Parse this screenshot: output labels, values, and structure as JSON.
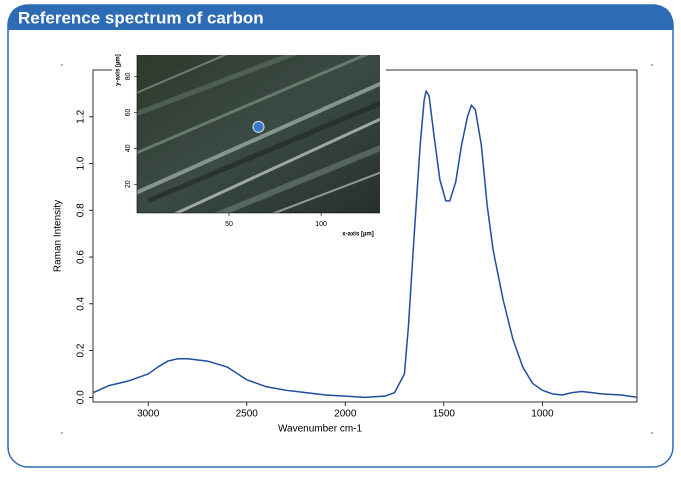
{
  "chart_data": {
    "type": "line",
    "title": "Reference spectrum of carbon",
    "x_label": "Wavenumber cm-1",
    "y_label": "Raman Intensity",
    "x": [
      3280,
      3200,
      3100,
      3000,
      2950,
      2900,
      2850,
      2800,
      2700,
      2600,
      2500,
      2400,
      2300,
      2200,
      2100,
      2000,
      1900,
      1800,
      1750,
      1700,
      1680,
      1650,
      1620,
      1600,
      1590,
      1575,
      1550,
      1520,
      1490,
      1470,
      1440,
      1410,
      1380,
      1360,
      1340,
      1310,
      1280,
      1250,
      1200,
      1150,
      1100,
      1050,
      1000,
      950,
      900,
      850,
      800,
      750,
      700,
      600,
      520
    ],
    "series": [
      {
        "color": "#1f4e9c",
        "values": [
          0.02,
          0.05,
          0.07,
          0.1,
          0.13,
          0.155,
          0.165,
          0.165,
          0.155,
          0.13,
          0.075,
          0.045,
          0.03,
          0.02,
          0.01,
          0.005,
          0.0,
          0.005,
          0.02,
          0.1,
          0.3,
          0.7,
          1.08,
          1.27,
          1.31,
          1.29,
          1.12,
          0.93,
          0.84,
          0.84,
          0.92,
          1.08,
          1.2,
          1.25,
          1.23,
          1.08,
          0.82,
          0.63,
          0.42,
          0.25,
          0.13,
          0.06,
          0.03,
          0.015,
          0.01,
          0.02,
          0.025,
          0.02,
          0.015,
          0.01,
          0.0
        ]
      }
    ],
    "xlim": [
      3280,
      520
    ],
    "ylim": [
      -0.02,
      1.4
    ],
    "xticks": [
      3000,
      2500,
      2000,
      1500,
      1000
    ],
    "yticks": [
      {
        "value": 0,
        "label": "0.0"
      },
      0.2,
      0.4,
      0.6,
      0.8,
      {
        "value": 1,
        "label": "1.0"
      },
      1.2
    ],
    "inset": {
      "x_label": "x-axis [µm]",
      "y_label": "y-axis [µm]",
      "xlim": [
        0,
        132
      ],
      "ylim": [
        4,
        92
      ],
      "xticks": [
        50,
        100
      ],
      "yticks": [
        20,
        40,
        60,
        80
      ],
      "point": {
        "x": 66,
        "y": 52
      }
    }
  }
}
